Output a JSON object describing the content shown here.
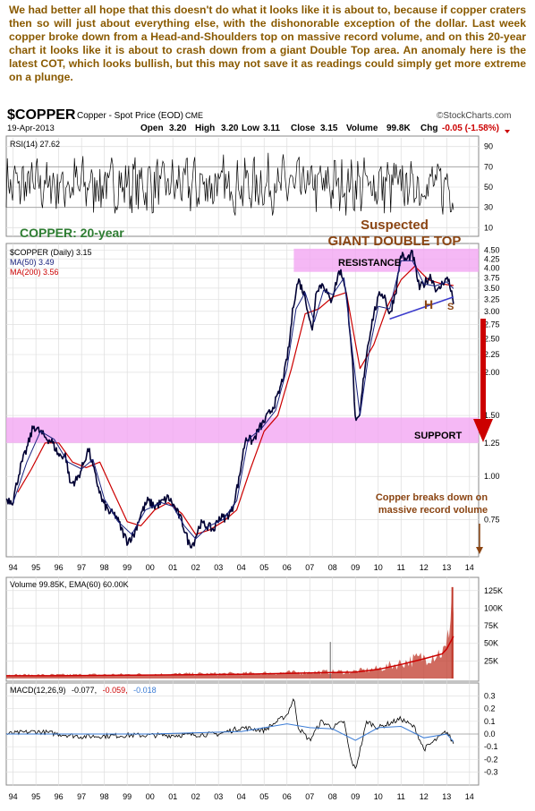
{
  "intro_text": "We had better all hope that this doesn't do what it looks like it is about to, because if copper craters then so will just about everything else, with the dishonorable exception of the dollar. Last week copper broke down from a Head-and-Shoulders top on massive record volume, and on this 20-year chart it looks like it is about to crash down from a giant Double Top area. An anomaly here is the latest COT, which looks bullish, but this may not save it as readings could simply get more extreme on a plunge.",
  "header": {
    "symbol": "$COPPER",
    "name": "Copper - Spot Price (EOD)",
    "exchange": "CME",
    "date": "19-Apr-2013",
    "open_label": "Open",
    "open": "3.20",
    "high_label": "High",
    "high": "3.20",
    "low_label": "Low",
    "low": "3.11",
    "close_label": "Close",
    "close": "3.15",
    "volume_label": "Volume",
    "volume": "99.8K",
    "chg_label": "Chg",
    "chg": "-0.05 (-1.58%)",
    "watermark": "©StockCharts.com"
  },
  "colors": {
    "intro_text": "#8a5a00",
    "price_line": "#000033",
    "ma50": "#1a237e",
    "ma200": "#cc0000",
    "band_fill": "#f2a6f2",
    "annotation_red": "#cc0000",
    "annotation_brown": "#8b4513",
    "green_label": "#2e7d32",
    "volume_fill": "#c0392b",
    "triangle_line": "#3b3bcc",
    "macd_signal": "#3a7bd5",
    "rsi_line": "#000000",
    "chg_negative": "#cc0000"
  },
  "annotations": {
    "copper_20yr": "COPPER: 20-year",
    "suspected": "Suspected",
    "giant_double_top": "GIANT DOUBLE TOP",
    "resistance": "RESISTANCE",
    "support": "SUPPORT",
    "h_left": "H",
    "s_right": "S",
    "breakdown": "Copper breaks down on massive record volume"
  },
  "chart_data": [
    {
      "panel": "rsi",
      "type": "line",
      "legend": "RSI(14) 27.62",
      "ylim": [
        5,
        95
      ],
      "ticks": [
        10,
        30,
        50,
        70,
        90
      ],
      "reference_levels": [
        30,
        70
      ],
      "last": 27.62
    },
    {
      "panel": "price",
      "type": "line",
      "scale": "log",
      "legend": [
        {
          "label": "$COPPER (Daily) 3.15",
          "value": 3.15
        },
        {
          "label": "MA(50) 3.49",
          "value": 3.49
        },
        {
          "label": "MA(200) 3.56",
          "value": 3.56
        }
      ],
      "ylim": [
        0.6,
        4.6
      ],
      "yticks": [
        0.75,
        1.0,
        1.25,
        1.5,
        2.0,
        2.25,
        2.5,
        2.75,
        3.0,
        3.25,
        3.5,
        3.75,
        4.0,
        4.25,
        4.5
      ],
      "yticklabels": [
        "0.75",
        "1.00",
        "1.25",
        "1.50",
        "2.00",
        "2.25",
        "2.50",
        "2.75",
        "3.00",
        "3.25",
        "3.50",
        "3.75",
        "4.00",
        "4.25",
        "4.50"
      ],
      "xticklabels": [
        "94",
        "95",
        "96",
        "97",
        "98",
        "99",
        "00",
        "01",
        "02",
        "03",
        "04",
        "05",
        "06",
        "07",
        "08",
        "09",
        "10",
        "11",
        "12",
        "13",
        "14"
      ],
      "xlim": [
        1993.7,
        2014.4
      ],
      "resistance_band": [
        3.9,
        4.55
      ],
      "support_band": [
        1.25,
        1.48
      ],
      "triangle_line": [
        [
          2010.5,
          2.85
        ],
        [
          2013.3,
          3.3
        ]
      ],
      "series": [
        {
          "name": "$COPPER (Daily)",
          "x": [
            1993.7,
            1994.0,
            1994.3,
            1994.6,
            1994.9,
            1995.1,
            1995.4,
            1995.7,
            1996.0,
            1996.3,
            1996.5,
            1996.8,
            1997.0,
            1997.3,
            1997.6,
            1997.9,
            1998.2,
            1998.5,
            1998.8,
            1999.0,
            1999.3,
            1999.6,
            1999.9,
            2000.2,
            2000.5,
            2000.8,
            2001.1,
            2001.4,
            2001.7,
            2001.9,
            2002.2,
            2002.5,
            2002.8,
            2003.0,
            2003.3,
            2003.6,
            2003.9,
            2004.2,
            2004.5,
            2004.8,
            2005.0,
            2005.3,
            2005.6,
            2005.9,
            2006.1,
            2006.3,
            2006.5,
            2006.8,
            2007.1,
            2007.3,
            2007.6,
            2007.9,
            2008.1,
            2008.3,
            2008.5,
            2008.8,
            2009.0,
            2009.2,
            2009.5,
            2009.8,
            2010.1,
            2010.3,
            2010.5,
            2010.8,
            2011.0,
            2011.2,
            2011.5,
            2011.8,
            2012.0,
            2012.3,
            2012.6,
            2012.9,
            2013.1,
            2013.3
          ],
          "y": [
            0.86,
            0.85,
            1.05,
            1.2,
            1.4,
            1.36,
            1.3,
            1.26,
            1.15,
            1.15,
            0.95,
            0.98,
            1.05,
            1.2,
            1.0,
            0.85,
            0.79,
            0.77,
            0.69,
            0.65,
            0.68,
            0.78,
            0.85,
            0.82,
            0.84,
            0.87,
            0.81,
            0.74,
            0.64,
            0.64,
            0.73,
            0.72,
            0.7,
            0.76,
            0.76,
            0.8,
            0.98,
            1.3,
            1.26,
            1.38,
            1.44,
            1.55,
            1.7,
            2.0,
            2.4,
            3.2,
            3.7,
            3.3,
            2.6,
            3.5,
            3.6,
            3.2,
            3.5,
            3.95,
            3.7,
            2.5,
            1.4,
            1.5,
            2.3,
            2.95,
            3.4,
            3.3,
            2.9,
            3.5,
            4.4,
            4.2,
            4.4,
            3.5,
            3.6,
            3.8,
            3.4,
            3.7,
            3.7,
            3.15
          ]
        },
        {
          "name": "MA(50)",
          "x": [
            1994.0,
            1994.6,
            1995.2,
            1995.8,
            1996.4,
            1997.0,
            1997.5,
            1998.0,
            1998.6,
            1999.2,
            1999.8,
            2000.5,
            2001.0,
            2001.5,
            2002.0,
            2002.6,
            2003.2,
            2003.8,
            2004.3,
            2004.9,
            2005.5,
            2006.0,
            2006.4,
            2006.8,
            2007.2,
            2007.6,
            2008.0,
            2008.5,
            2008.9,
            2009.2,
            2009.6,
            2010.0,
            2010.5,
            2011.0,
            2011.5,
            2012.0,
            2012.5,
            2013.0,
            2013.3
          ],
          "y": [
            0.84,
            1.1,
            1.35,
            1.28,
            1.1,
            1.05,
            1.12,
            0.86,
            0.74,
            0.68,
            0.8,
            0.84,
            0.82,
            0.72,
            0.66,
            0.72,
            0.75,
            0.85,
            1.28,
            1.38,
            1.55,
            2.05,
            3.05,
            3.4,
            2.8,
            3.45,
            3.35,
            3.75,
            2.2,
            1.5,
            2.3,
            3.1,
            3.05,
            4.2,
            4.2,
            3.6,
            3.55,
            3.65,
            3.49
          ]
        },
        {
          "name": "MA(200)",
          "x": [
            1994.2,
            1994.8,
            1995.4,
            1996.0,
            1996.6,
            1997.2,
            1997.8,
            1998.4,
            1999.0,
            1999.6,
            2000.2,
            2000.8,
            2001.4,
            2002.0,
            2002.6,
            2003.2,
            2003.8,
            2004.4,
            2005.0,
            2005.6,
            2006.2,
            2006.8,
            2007.4,
            2008.0,
            2008.6,
            2009.2,
            2009.8,
            2010.4,
            2011.0,
            2011.6,
            2012.2,
            2012.8,
            2013.3
          ],
          "y": [
            0.9,
            1.05,
            1.25,
            1.25,
            1.1,
            1.06,
            1.1,
            0.9,
            0.74,
            0.72,
            0.8,
            0.84,
            0.78,
            0.68,
            0.7,
            0.74,
            0.8,
            1.05,
            1.35,
            1.5,
            2.05,
            2.95,
            3.05,
            3.3,
            3.4,
            2.05,
            2.4,
            3.1,
            3.7,
            4.05,
            3.7,
            3.6,
            3.56
          ]
        }
      ]
    },
    {
      "panel": "volume",
      "type": "area",
      "legend": "Volume 99.85K, EMA(60) 60.00K",
      "ylim": [
        0,
        140
      ],
      "yticks": [
        25,
        50,
        75,
        100,
        125
      ],
      "yticklabels": [
        "25K",
        "50K",
        "75K",
        "100K",
        "125K"
      ],
      "series": [
        {
          "name": "Volume",
          "x": [
            1993.7,
            1996.0,
            2000.0,
            2004.0,
            2007.0,
            2009.0,
            2010.0,
            2011.0,
            2012.0,
            2012.8,
            2013.0,
            2013.25,
            2013.3
          ],
          "y": [
            5,
            5,
            6,
            7,
            9,
            10,
            14,
            22,
            30,
            38,
            40,
            130,
            99.85
          ]
        },
        {
          "name": "EMA(60)",
          "x": [
            1993.7,
            1996.0,
            2000.0,
            2004.0,
            2007.0,
            2009.0,
            2010.0,
            2011.0,
            2012.0,
            2012.8,
            2013.0,
            2013.3
          ],
          "y": [
            4,
            4,
            5,
            6,
            8,
            9,
            13,
            20,
            28,
            35,
            42,
            60
          ]
        }
      ]
    },
    {
      "panel": "macd",
      "type": "line",
      "legend_prefix": "MACD(12,26,9)",
      "legend_values": [
        "-0.077,",
        "-0.059,",
        "-0.018"
      ],
      "ylim": [
        -0.38,
        0.38
      ],
      "yticks": [
        -0.3,
        -0.2,
        -0.1,
        0.0,
        0.1,
        0.2,
        0.3
      ],
      "yticklabels": [
        "-0.3",
        "-0.2",
        "-0.1",
        "0.0",
        "0.1",
        "0.2",
        "0.3"
      ],
      "series": [
        {
          "name": "MACD",
          "x": [
            1993.7,
            1995.0,
            1997.0,
            1999.0,
            2001.0,
            2003.0,
            2004.0,
            2005.0,
            2006.0,
            2006.3,
            2006.5,
            2007.0,
            2007.5,
            2008.0,
            2008.5,
            2008.8,
            2009.0,
            2009.5,
            2010.0,
            2011.0,
            2011.6,
            2012.0,
            2012.5,
            2013.0,
            2013.3
          ],
          "y": [
            0.0,
            0.02,
            -0.02,
            -0.01,
            -0.01,
            0.0,
            0.05,
            0.03,
            0.15,
            0.28,
            0.05,
            -0.05,
            0.1,
            0.05,
            0.1,
            -0.2,
            -0.28,
            0.1,
            0.05,
            0.12,
            0.05,
            -0.12,
            -0.05,
            0.02,
            -0.077
          ]
        },
        {
          "name": "Signal",
          "x": [
            1993.7,
            1996.0,
            2000.0,
            2004.0,
            2006.0,
            2007.0,
            2008.0,
            2009.0,
            2010.0,
            2011.0,
            2012.0,
            2013.0,
            2013.3
          ],
          "y": [
            0.0,
            0.0,
            0.0,
            0.02,
            0.08,
            0.05,
            0.04,
            -0.05,
            0.05,
            0.06,
            -0.03,
            0.0,
            -0.059
          ]
        }
      ]
    }
  ]
}
